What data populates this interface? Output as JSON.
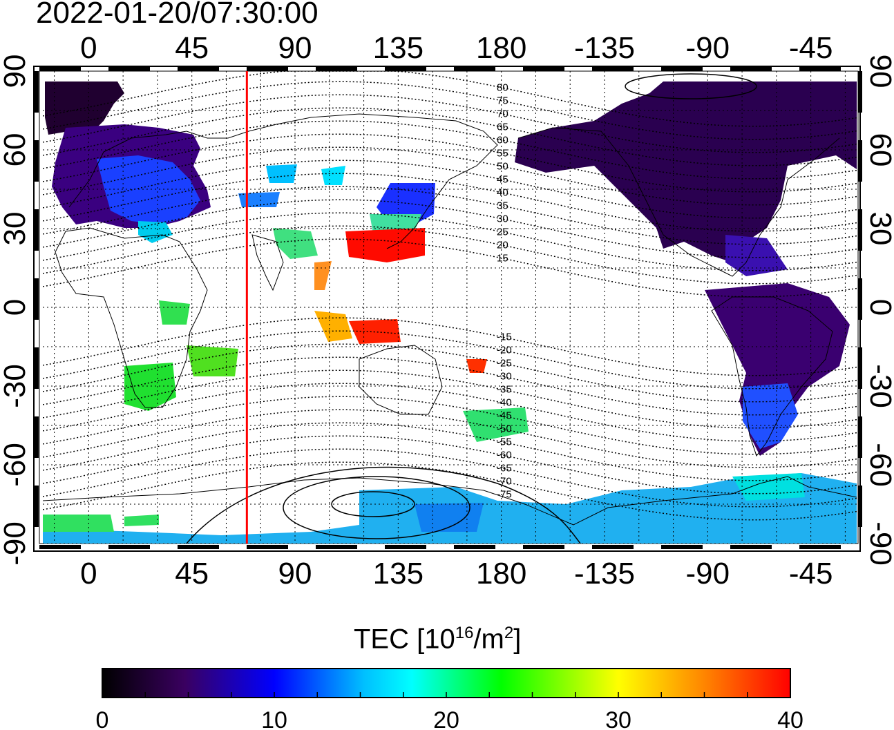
{
  "header": {
    "timestamp": "2022-01-20/07:30:00"
  },
  "map": {
    "lon_ticks": [
      "0",
      "45",
      "90",
      "135",
      "180",
      "-135",
      "-90",
      "-45"
    ],
    "lat_ticks": [
      "90",
      "60",
      "30",
      "0",
      "-30",
      "-60",
      "-90"
    ],
    "lon_range": [
      -20,
      335
    ],
    "lat_range": [
      -90,
      90
    ],
    "terminator_longitude": 69,
    "terminator_color": "#ff0000",
    "contour_labels": [
      "80",
      "75",
      "70",
      "65",
      "60",
      "55",
      "50",
      "45",
      "40",
      "35",
      "30",
      "25",
      "20",
      "15",
      "-15",
      "-20",
      "-25",
      "-30",
      "-35",
      "-40",
      "-45",
      "-50",
      "-55",
      "-60",
      "-65",
      "-70",
      "-75"
    ]
  },
  "colorbar": {
    "title_prefix": "TEC  [10",
    "title_sup1": "16",
    "title_mid": "/m",
    "title_sup2": "2",
    "title_suffix": "]",
    "min": 0,
    "max": 40,
    "tick_labels": [
      "0",
      "10",
      "20",
      "30",
      "40"
    ],
    "colors": [
      "#000000",
      "#3a0060",
      "#0000ff",
      "#00ffff",
      "#00ff00",
      "#ffff00",
      "#ff8000",
      "#ff0000"
    ]
  }
}
